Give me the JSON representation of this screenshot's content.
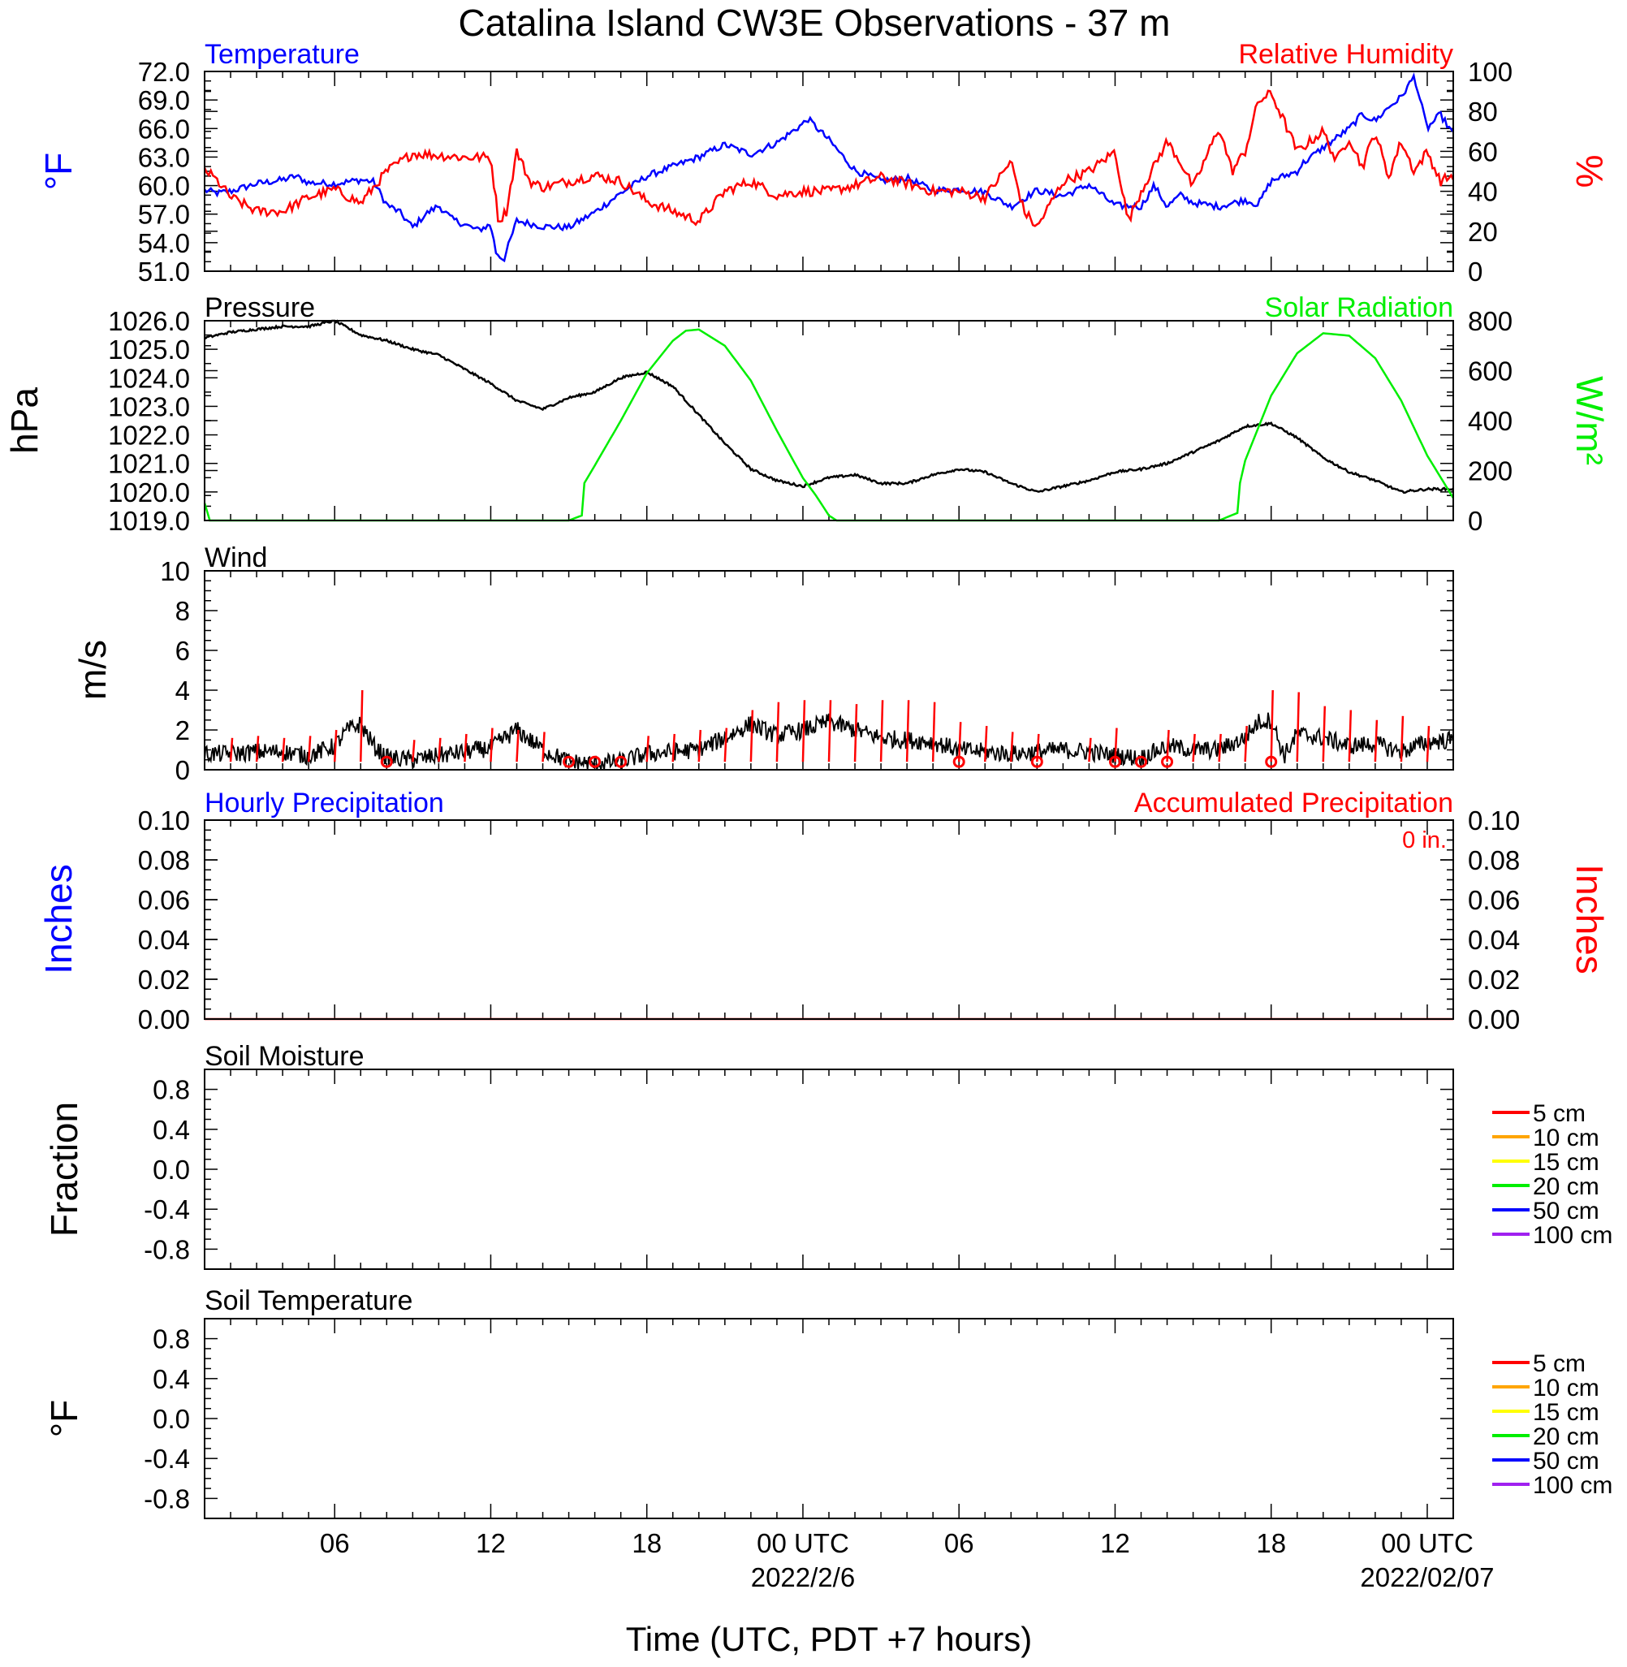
{
  "title": "Catalina Island CW3E Observations - 37 m",
  "xlabel": "Time (UTC, PDT +7 hours)",
  "x_axis": {
    "tick_hours": [
      6,
      12,
      18,
      24,
      30,
      36,
      42,
      48
    ],
    "tick_labels": [
      "06",
      "12",
      "18",
      "00 UTC",
      "06",
      "12",
      "18",
      "00 UTC"
    ],
    "date_labels": [
      {
        "hour": 24,
        "text": "2022/2/6"
      },
      {
        "hour": 48,
        "text": "2022/02/07"
      }
    ],
    "range_hours": [
      1,
      49
    ]
  },
  "colors": {
    "temperature": "#0000ff",
    "humidity": "#ff0000",
    "pressure": "#000000",
    "solar": "#00ee00",
    "wind": "#000000",
    "wind_barb": "#ff0000",
    "precip": "#ff0000"
  },
  "panels": {
    "temp_rh": {
      "left_title": "Temperature",
      "right_title": "Relative Humidity",
      "left_ylabel": "°F",
      "right_ylabel": "%",
      "left_ticks": [
        "72.0",
        "69.0",
        "66.0",
        "63.0",
        "60.0",
        "57.0",
        "54.0",
        "51.0"
      ],
      "right_ticks": [
        "100",
        "80",
        "60",
        "40",
        "20",
        "0"
      ]
    },
    "pressure_solar": {
      "left_title": "Pressure",
      "right_title": "Solar Radiation",
      "left_ylabel": "hPa",
      "right_ylabel": "W/m²",
      "left_ticks": [
        "1026.0",
        "1025.0",
        "1024.0",
        "1023.0",
        "1022.0",
        "1021.0",
        "1020.0",
        "1019.0"
      ],
      "right_ticks": [
        "800",
        "600",
        "400",
        "200",
        "0"
      ]
    },
    "wind": {
      "left_title": "Wind",
      "left_ylabel": "m/s",
      "left_ticks": [
        "10",
        "8",
        "6",
        "4",
        "2",
        "0"
      ]
    },
    "precip": {
      "left_title": "Hourly Precipitation",
      "right_title": "Accumulated Precipitation",
      "accum_label": "0 in.",
      "left_ylabel": "Inches",
      "right_ylabel": "Inches",
      "left_ticks": [
        "0.10",
        "0.08",
        "0.06",
        "0.04",
        "0.02",
        "0.00"
      ],
      "right_ticks": [
        "0.10",
        "0.08",
        "0.06",
        "0.04",
        "0.02",
        "0.00"
      ]
    },
    "soil_moisture": {
      "left_title": "Soil Moisture",
      "left_ylabel": "Fraction",
      "left_ticks": [
        "0.8",
        "0.4",
        "0.0",
        "-0.4",
        "-0.8"
      ]
    },
    "soil_temp": {
      "left_title": "Soil Temperature",
      "left_ylabel": "°F",
      "left_ticks": [
        "0.8",
        "0.4",
        "0.0",
        "-0.4",
        "-0.8"
      ]
    }
  },
  "soil_legend": [
    {
      "label": "5 cm",
      "color": "#ff0000"
    },
    {
      "label": "10 cm",
      "color": "#ffa500"
    },
    {
      "label": "15 cm",
      "color": "#ffff00"
    },
    {
      "label": "20 cm",
      "color": "#00ee00"
    },
    {
      "label": "50 cm",
      "color": "#0000ff"
    },
    {
      "label": "100 cm",
      "color": "#a020f0"
    }
  ],
  "chart_data": [
    {
      "type": "line",
      "panel": "temp_rh",
      "title": "Temperature",
      "x_unit": "hours UTC from 2022-02-05 00 UTC",
      "ylim": [
        51,
        72
      ],
      "series": [
        {
          "name": "Temperature",
          "x": [
            1,
            1.5,
            2,
            3,
            4,
            4.5,
            5,
            6,
            7,
            7.5,
            8,
            8.5,
            9,
            9.5,
            10,
            10.5,
            11,
            11.5,
            12,
            12.2,
            12.5,
            13,
            14,
            15,
            16,
            17,
            18,
            19,
            20,
            21,
            22,
            23,
            24,
            24.2,
            25,
            26,
            27,
            28,
            29,
            30,
            31,
            32,
            33,
            34,
            35,
            36,
            37,
            37.5,
            38,
            38.5,
            39,
            40,
            41,
            41.5,
            42,
            43,
            43.2,
            44,
            45,
            45.5,
            46,
            46.5,
            47,
            47.5,
            48,
            48.5,
            49
          ],
          "y": [
            59.5,
            59.2,
            59.4,
            60.2,
            60.6,
            61.0,
            60.3,
            60.2,
            60.6,
            60.4,
            58.0,
            57.2,
            55.6,
            57.0,
            57.9,
            56.5,
            55.9,
            55.3,
            55.9,
            53.0,
            52.2,
            56.3,
            55.7,
            55.6,
            57.2,
            59.2,
            61.0,
            62.0,
            63.0,
            64.3,
            63.3,
            64.5,
            66.5,
            67.0,
            64.8,
            61.6,
            60.5,
            60.8,
            59.5,
            59.6,
            59.3,
            57.8,
            59.5,
            58.9,
            60.1,
            57.9,
            57.8,
            60.0,
            57.8,
            59.0,
            58.2,
            57.8,
            58.5,
            58.0,
            60.5,
            61.5,
            62.3,
            64.0,
            66.0,
            67.5,
            66.8,
            68.2,
            69.3,
            71.5,
            66.0,
            67.5,
            65.4
          ]
        }
      ]
    },
    {
      "type": "line",
      "panel": "temp_rh",
      "title": "Relative Humidity",
      "ylim": [
        0,
        100
      ],
      "series": [
        {
          "name": "Relative Humidity",
          "x": [
            1,
            1.5,
            2,
            3,
            4,
            5,
            6,
            7,
            8,
            9,
            10,
            11,
            12,
            12.3,
            12.6,
            13,
            13.5,
            14,
            15,
            16,
            17,
            18,
            19,
            20,
            21,
            22,
            23,
            24,
            25,
            26,
            27,
            28,
            29,
            30,
            31,
            32,
            32.5,
            33,
            34,
            35,
            36,
            36.5,
            37,
            38,
            38.5,
            39,
            40,
            40.5,
            41,
            41.5,
            42,
            42.5,
            43,
            44,
            44.5,
            45,
            45.5,
            46,
            46.5,
            47,
            47.5,
            48,
            48.5,
            49
          ],
          "y": [
            51,
            45,
            37,
            30,
            30,
            37,
            41,
            34,
            50,
            59,
            58,
            57,
            57,
            25,
            30,
            60,
            45,
            42,
            45,
            48,
            45,
            35,
            30,
            25,
            40,
            45,
            38,
            40,
            40,
            43,
            47,
            44,
            40,
            40,
            37,
            55,
            30,
            22,
            45,
            50,
            60,
            25,
            40,
            65,
            55,
            42,
            72,
            50,
            60,
            85,
            89,
            75,
            60,
            70,
            55,
            67,
            52,
            70,
            47,
            65,
            50,
            60,
            45,
            48
          ]
        }
      ]
    },
    {
      "type": "line",
      "panel": "pressure_solar",
      "title": "Pressure",
      "ylim": [
        1019,
        1026
      ],
      "series": [
        {
          "name": "Pressure",
          "x": [
            1,
            2,
            3,
            4,
            5,
            6,
            7,
            8,
            9,
            10,
            11,
            12,
            13,
            14,
            15,
            16,
            17,
            18,
            19,
            20,
            21,
            22,
            23,
            24,
            25,
            26,
            27,
            28,
            29,
            30,
            31,
            32,
            33,
            34,
            35,
            36,
            37,
            38,
            39,
            40,
            41,
            42,
            43,
            44,
            45,
            46,
            47,
            48,
            49
          ],
          "y": [
            1025.4,
            1025.6,
            1025.7,
            1025.8,
            1025.8,
            1026.0,
            1025.5,
            1025.3,
            1025.0,
            1024.8,
            1024.3,
            1023.8,
            1023.2,
            1022.9,
            1023.3,
            1023.5,
            1024.0,
            1024.2,
            1023.7,
            1022.7,
            1021.7,
            1020.8,
            1020.4,
            1020.2,
            1020.5,
            1020.6,
            1020.3,
            1020.3,
            1020.6,
            1020.8,
            1020.7,
            1020.3,
            1020.0,
            1020.2,
            1020.4,
            1020.7,
            1020.8,
            1021.0,
            1021.4,
            1021.8,
            1022.3,
            1022.4,
            1021.9,
            1021.2,
            1020.7,
            1020.4,
            1020.0,
            1020.1,
            1020.1
          ]
        }
      ]
    },
    {
      "type": "line",
      "panel": "pressure_solar",
      "title": "Solar Radiation",
      "ylim": [
        0,
        800
      ],
      "series": [
        {
          "name": "Solar Radiation",
          "x": [
            1,
            1.2,
            15,
            15.5,
            15.6,
            16,
            17,
            18,
            19,
            19.5,
            20,
            21,
            22,
            23,
            24,
            24.5,
            25,
            25.3,
            25.5,
            40,
            40.7,
            40.8,
            41,
            42,
            43,
            44,
            45,
            46,
            47,
            48,
            49
          ],
          "y": [
            70,
            0,
            0,
            20,
            150,
            220,
            400,
            590,
            720,
            760,
            765,
            700,
            560,
            360,
            170,
            100,
            20,
            0,
            0,
            0,
            30,
            150,
            240,
            500,
            670,
            750,
            740,
            650,
            480,
            260,
            90
          ]
        }
      ]
    },
    {
      "type": "line",
      "panel": "wind",
      "title": "Wind",
      "ylim": [
        0,
        10
      ],
      "series": [
        {
          "name": "Wind speed",
          "x": [
            1,
            2,
            3,
            4,
            5,
            6,
            6.5,
            7,
            7.5,
            8,
            9,
            10,
            11,
            12,
            13,
            14,
            15,
            16,
            17,
            18,
            19,
            20,
            21,
            22,
            23,
            24,
            25,
            26,
            27,
            28,
            29,
            30,
            31,
            32,
            33,
            34,
            35,
            36,
            37,
            38,
            39,
            40,
            41,
            41.5,
            42,
            42.5,
            43,
            44,
            45,
            46,
            47,
            48,
            49
          ],
          "y": [
            0.8,
            0.8,
            0.9,
            0.9,
            0.7,
            1.2,
            2.0,
            2.3,
            1.2,
            0.6,
            0.5,
            0.7,
            0.9,
            1.1,
            2.0,
            1.0,
            0.4,
            0.3,
            0.4,
            0.8,
            0.9,
            1.0,
            1.6,
            2.3,
            1.7,
            2.0,
            2.4,
            2.0,
            1.6,
            1.5,
            1.4,
            1.0,
            0.9,
            0.8,
            0.9,
            1.0,
            0.9,
            0.7,
            0.6,
            1.2,
            1.0,
            1.0,
            1.6,
            2.4,
            2.5,
            0.7,
            1.8,
            1.6,
            1.2,
            1.3,
            0.9,
            1.4,
            1.5
          ]
        }
      ],
      "barb_hours": [
        2,
        3,
        4,
        5,
        6,
        7,
        9,
        10,
        11,
        12,
        13,
        14,
        18,
        19,
        20,
        21,
        22,
        23,
        24,
        25,
        26,
        27,
        28,
        29,
        30,
        31,
        32,
        33,
        35,
        36,
        38,
        39,
        40,
        41,
        42,
        43,
        44,
        45,
        46,
        47,
        48
      ],
      "barb_speeds": [
        1.6,
        1.7,
        1.6,
        1.7,
        2.0,
        4.0,
        1.5,
        1.6,
        1.8,
        2.1,
        2.0,
        1.9,
        1.7,
        1.8,
        2.0,
        2.1,
        3.0,
        3.4,
        3.5,
        3.5,
        3.3,
        3.5,
        3.5,
        3.4,
        2.4,
        2.2,
        1.9,
        1.8,
        1.6,
        2.1,
        2.0,
        1.8,
        1.8,
        2.2,
        4.0,
        3.9,
        3.2,
        3.0,
        2.5,
        2.7,
        2.2
      ],
      "calm_hours": [
        8,
        15,
        16,
        17,
        30,
        33,
        36,
        37,
        38,
        42
      ]
    },
    {
      "type": "line",
      "panel": "precip",
      "title": "Hourly Precipitation",
      "ylim": [
        0,
        0.1
      ],
      "series": [
        {
          "name": "Accumulated Precipitation",
          "x": [
            1,
            49
          ],
          "y": [
            0,
            0
          ]
        }
      ]
    },
    {
      "type": "line",
      "panel": "soil_moisture",
      "title": "Soil Moisture",
      "ylim": [
        -1,
        1
      ],
      "series": []
    },
    {
      "type": "line",
      "panel": "soil_temp",
      "title": "Soil Temperature",
      "ylim": [
        -1,
        1
      ],
      "series": []
    }
  ]
}
